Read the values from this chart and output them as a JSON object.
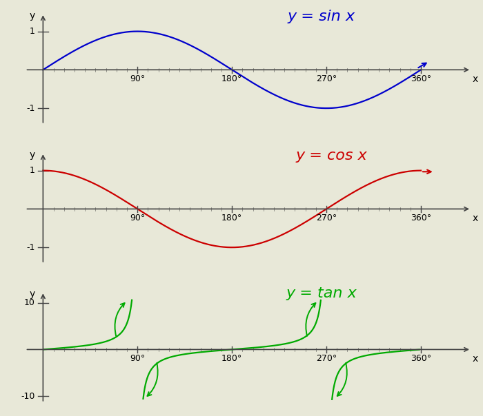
{
  "bg_color": "#e8e8d8",
  "sin_color": "#0000cc",
  "cos_color": "#cc0000",
  "tan_color": "#00aa00",
  "title_sin": "y = sin x",
  "title_cos": "y = cos x",
  "title_tan": "y = tan x",
  "title_fontsize": 16,
  "axis_color": "#444444",
  "tick_color": "#444444",
  "label_fontsize": 9,
  "axis_lw": 1.2,
  "curve_lw": 1.6
}
